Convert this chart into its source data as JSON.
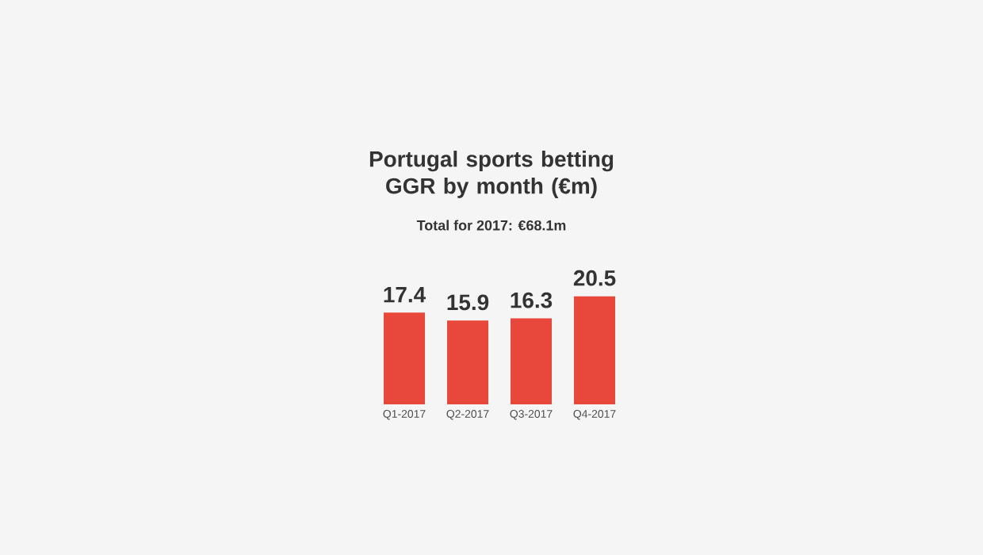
{
  "chart_data": {
    "type": "bar",
    "title": "Portugal sports betting GGR by month (€m)",
    "subtitle": "Total for 2017: €68.1m",
    "categories": [
      "Q1-2017",
      "Q2-2017",
      "Q3-2017",
      "Q4-2017"
    ],
    "values": [
      17.4,
      15.9,
      16.3,
      20.5
    ],
    "color": "#e8473b",
    "data_labels": true
  }
}
